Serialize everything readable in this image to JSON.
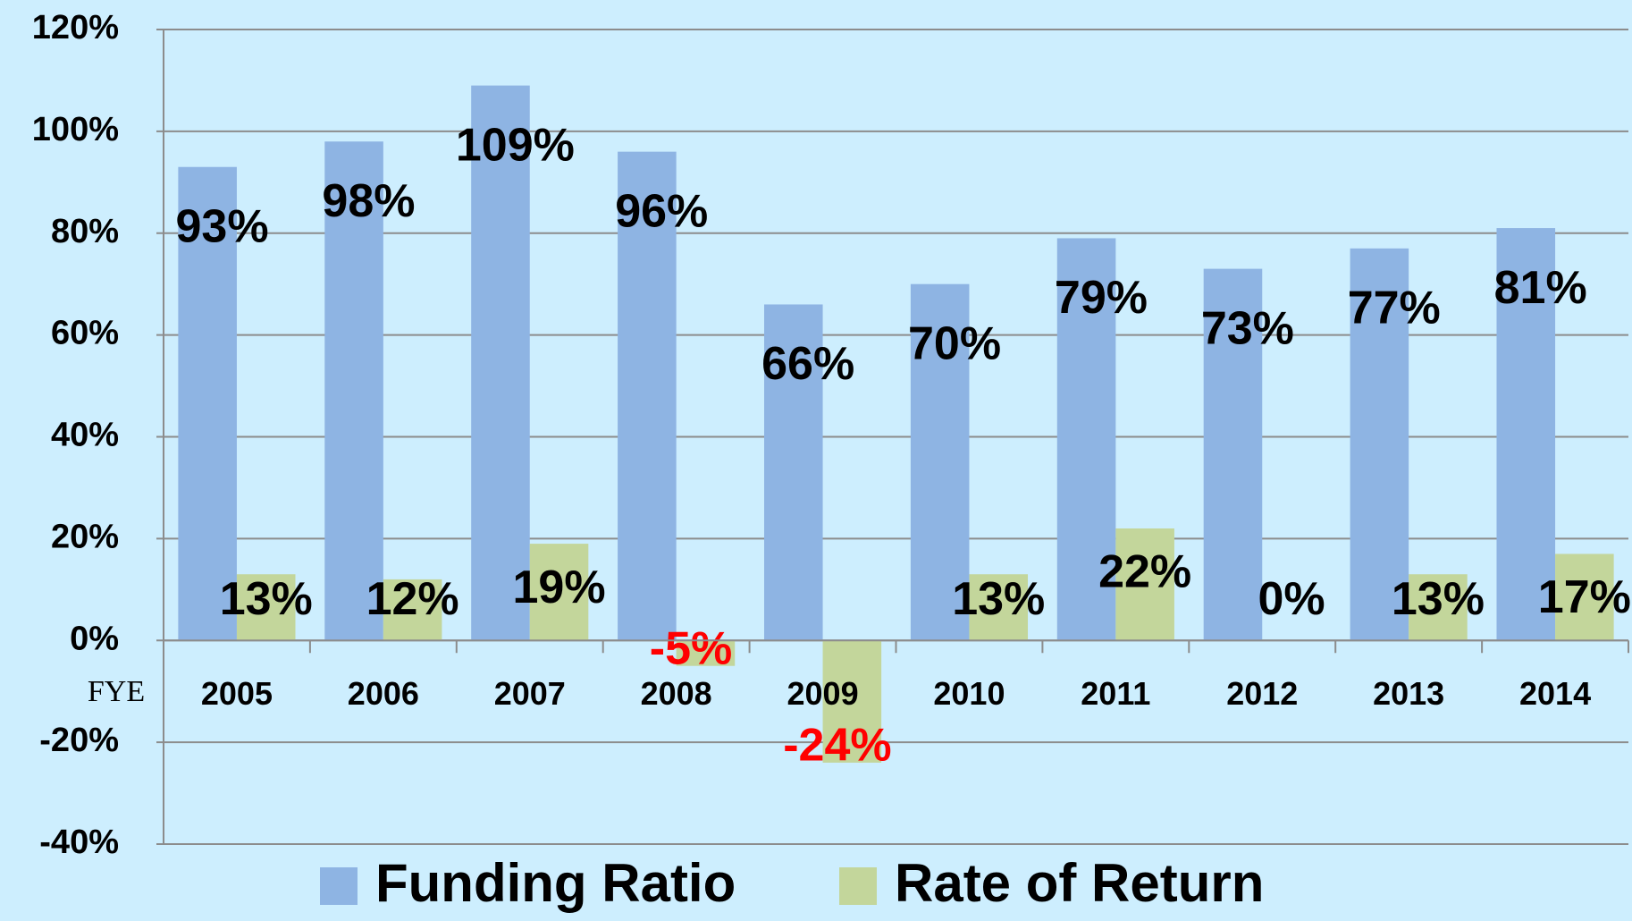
{
  "chart_data": {
    "type": "bar",
    "x_label": "FYE",
    "categories": [
      "2005",
      "2006",
      "2007",
      "2008",
      "2009",
      "2010",
      "2011",
      "2012",
      "2013",
      "2014"
    ],
    "series": [
      {
        "name": "Funding Ratio",
        "color": "#8eb4e3",
        "values": [
          93,
          98,
          109,
          96,
          66,
          70,
          79,
          73,
          77,
          81
        ],
        "value_labels": [
          "93%",
          "98%",
          "109%",
          "96%",
          "66%",
          "70%",
          "79%",
          "73%",
          "77%",
          "81%"
        ]
      },
      {
        "name": "Rate of Return",
        "color": "#c3d69b",
        "values": [
          13,
          12,
          19,
          -5,
          -24,
          13,
          22,
          0,
          13,
          17
        ],
        "value_labels": [
          "13%",
          "12%",
          "19%",
          "-5%",
          "-24%",
          "13%",
          "22%",
          "0%",
          "13%",
          "17%"
        ]
      }
    ],
    "ylim": [
      -40,
      120
    ],
    "yticks": [
      {
        "value": -40,
        "label": "-40%"
      },
      {
        "value": -20,
        "label": "-20%"
      },
      {
        "value": 0,
        "label": "0%"
      },
      {
        "value": 20,
        "label": "20%"
      },
      {
        "value": 40,
        "label": "40%"
      },
      {
        "value": 60,
        "label": "60%"
      },
      {
        "value": 80,
        "label": "80%"
      },
      {
        "value": 100,
        "label": "100%"
      },
      {
        "value": 120,
        "label": "120%"
      }
    ],
    "grid": true,
    "legend": "bottom",
    "label_color": "#000000",
    "negative_label_color": "#ff0000"
  }
}
